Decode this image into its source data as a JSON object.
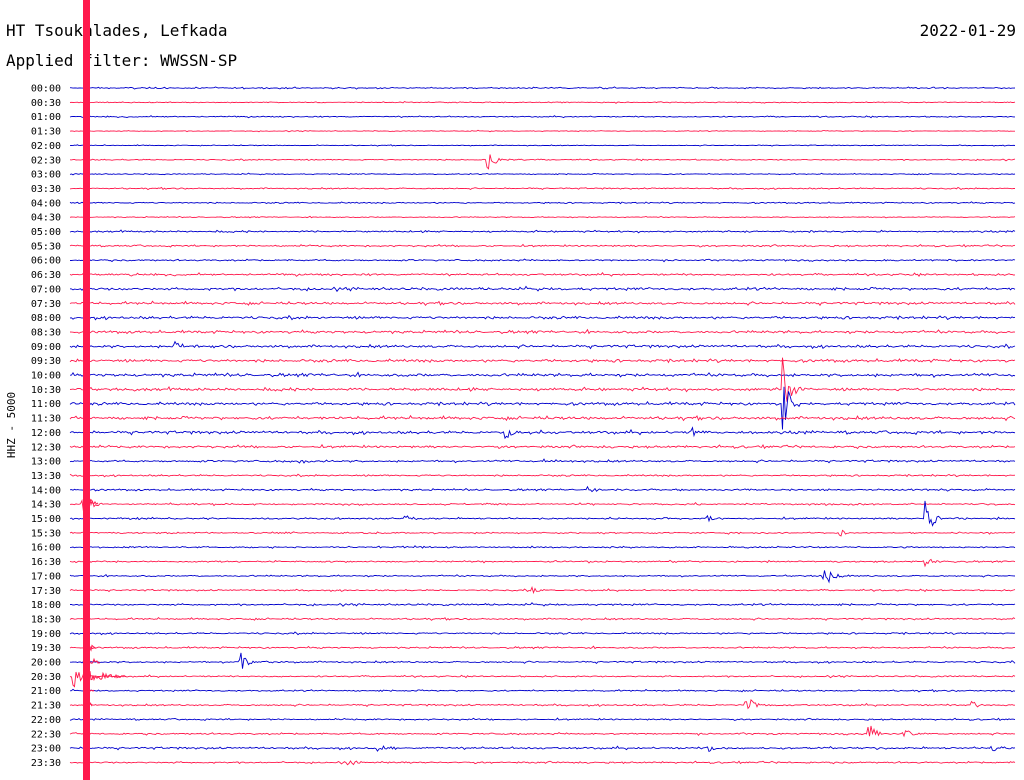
{
  "header": {
    "station": "HT Tsoukalades, Lefkada",
    "filter": "Applied filter: WWSSN-SP",
    "date": "2022-01-29"
  },
  "chart_data": {
    "type": "line",
    "title": "HT Tsoukalades, Lefkada",
    "subtitle": "Applied filter: WWSSN-SP",
    "ylabel": "HHZ - 5000",
    "row_labels": [
      "00:00",
      "00:30",
      "01:00",
      "01:30",
      "02:00",
      "02:30",
      "03:00",
      "03:30",
      "04:00",
      "04:30",
      "05:00",
      "05:30",
      "06:00",
      "06:30",
      "07:00",
      "07:30",
      "08:00",
      "08:30",
      "09:00",
      "09:30",
      "10:00",
      "10:30",
      "11:00",
      "11:30",
      "12:00",
      "12:30",
      "13:00",
      "13:30",
      "14:00",
      "14:30",
      "15:00",
      "15:30",
      "16:00",
      "16:30",
      "17:00",
      "17:30",
      "18:00",
      "18:30",
      "19:00",
      "19:30",
      "20:00",
      "20:30",
      "21:00",
      "21:30",
      "22:00",
      "22:30",
      "23:00",
      "23:30"
    ],
    "row_colors": [
      "#0000cc",
      "#ff1a4d"
    ],
    "trace_minutes": 30,
    "noise_levels": [
      0.8,
      0.6,
      0.7,
      0.5,
      0.5,
      0.7,
      0.6,
      0.8,
      0.8,
      0.6,
      1.0,
      1.0,
      1.0,
      1.2,
      1.6,
      1.5,
      1.6,
      1.6,
      1.6,
      1.7,
      1.8,
      1.7,
      1.7,
      1.8,
      1.7,
      1.4,
      1.2,
      1.0,
      1.1,
      1.0,
      1.0,
      0.9,
      0.9,
      0.9,
      0.9,
      0.9,
      1.1,
      1.0,
      1.0,
      1.0,
      1.0,
      0.9,
      0.9,
      1.0,
      0.9,
      1.0,
      1.2,
      1.0
    ],
    "events": [
      {
        "row": 5,
        "minute": 13.2,
        "amplitude": 14
      },
      {
        "row": 18,
        "minute": 3.3,
        "amplitude": 6
      },
      {
        "row": 21,
        "minute": 22.6,
        "amplitude": 32
      },
      {
        "row": 22,
        "minute": 22.6,
        "amplitude": 28
      },
      {
        "row": 24,
        "minute": 13.8,
        "amplitude": 7
      },
      {
        "row": 24,
        "minute": 19.7,
        "amplitude": 8
      },
      {
        "row": 26,
        "minute": 7.3,
        "amplitude": 3
      },
      {
        "row": 26,
        "minute": 14.9,
        "amplitude": 3
      },
      {
        "row": 28,
        "minute": 16.4,
        "amplitude": 4
      },
      {
        "row": 29,
        "minute": 0.4,
        "amplitude": 18
      },
      {
        "row": 30,
        "minute": 27.1,
        "amplitude": 24
      },
      {
        "row": 30,
        "minute": 20.2,
        "amplitude": 5
      },
      {
        "row": 30,
        "minute": 10.6,
        "amplitude": 3
      },
      {
        "row": 31,
        "minute": 24.4,
        "amplitude": 4
      },
      {
        "row": 33,
        "minute": 27.1,
        "amplitude": 5
      },
      {
        "row": 34,
        "minute": 23.9,
        "amplitude": 14
      },
      {
        "row": 35,
        "minute": 14.6,
        "amplitude": 4
      },
      {
        "row": 40,
        "minute": 5.4,
        "amplitude": 10
      },
      {
        "row": 41,
        "minute": 0.1,
        "amplitude": 14
      },
      {
        "row": 43,
        "minute": 21.4,
        "amplitude": 14
      },
      {
        "row": 43,
        "minute": 28.6,
        "amplitude": 4
      },
      {
        "row": 45,
        "minute": 25.3,
        "amplitude": 14
      },
      {
        "row": 45,
        "minute": 26.4,
        "amplitude": 8
      },
      {
        "row": 46,
        "minute": 9.7,
        "amplitude": 5
      },
      {
        "row": 46,
        "minute": 20.2,
        "amplitude": 6
      },
      {
        "row": 46,
        "minute": 29.2,
        "amplitude": 7
      },
      {
        "row": 47,
        "minute": 8.8,
        "amplitude": 4
      }
    ]
  }
}
